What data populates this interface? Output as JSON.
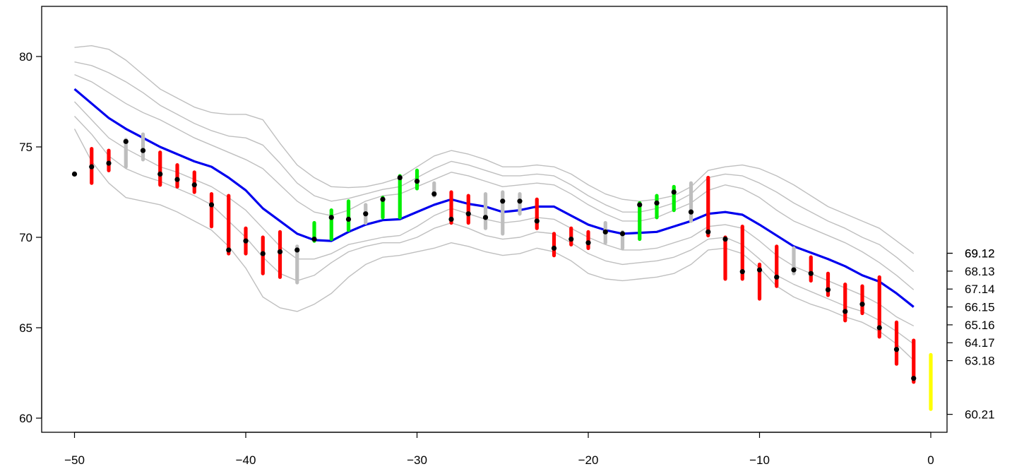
{
  "chart_data": {
    "type": "line",
    "xlim": [
      -50,
      0
    ],
    "ylim": [
      60,
      82
    ],
    "x_ticks": [
      "-50",
      "-40",
      "-30",
      "-20",
      "-10",
      "0"
    ],
    "y_ticks": [
      "60",
      "65",
      "70",
      "75",
      "80"
    ],
    "right_axis_ticks": [
      "60.21",
      "63.18",
      "64.17",
      "65.16",
      "66.15",
      "67.14",
      "68.13",
      "69.12",
      "69.12"
    ],
    "colors": {
      "band": "#bfbfbf",
      "center": "#0000ee",
      "up": "#00ee00",
      "down": "#ff0000",
      "neutral": "#bebebe",
      "current": "#ffff00",
      "point": "#000000"
    },
    "x": [
      -50,
      -49,
      -48,
      -47,
      -46,
      -45,
      -44,
      -43,
      -42,
      -41,
      -40,
      -39,
      -38,
      -37,
      -36,
      -35,
      -34,
      -33,
      -32,
      -31,
      -30,
      -29,
      -28,
      -27,
      -26,
      -25,
      -24,
      -23,
      -22,
      -21,
      -20,
      -19,
      -18,
      -17,
      -16,
      -15,
      -14,
      -13,
      -12,
      -11,
      -10,
      -9,
      -8,
      -7,
      -6,
      -5,
      -4,
      -3,
      -2,
      -1
    ],
    "series": [
      {
        "role": "center",
        "values": [
          78.2,
          77.4,
          76.6,
          76.0,
          75.5,
          75.0,
          74.6,
          74.2,
          73.9,
          73.3,
          72.6,
          71.6,
          70.9,
          70.2,
          69.85,
          69.8,
          70.3,
          70.7,
          70.95,
          71.0,
          71.4,
          71.8,
          72.1,
          71.85,
          71.7,
          71.4,
          71.5,
          71.7,
          71.7,
          71.2,
          70.7,
          70.4,
          70.2,
          70.25,
          70.3,
          70.6,
          70.9,
          71.3,
          71.4,
          71.25,
          70.7,
          70.1,
          69.5,
          69.15,
          68.8,
          68.4,
          67.9,
          67.55,
          66.9,
          66.15
        ]
      },
      {
        "role": "band",
        "values": [
          80.5,
          80.6,
          80.4,
          79.8,
          79.0,
          78.2,
          77.7,
          77.2,
          76.9,
          76.8,
          76.8,
          76.5,
          75.2,
          74.0,
          73.3,
          72.8,
          72.75,
          72.8,
          73.0,
          73.3,
          73.9,
          74.5,
          74.8,
          74.6,
          74.3,
          73.9,
          73.9,
          74.0,
          73.9,
          73.5,
          72.9,
          72.4,
          72.1,
          72.0,
          72.1,
          72.3,
          72.8,
          73.7,
          73.9,
          74.0,
          73.8,
          73.4,
          72.9,
          72.3,
          71.7,
          71.3,
          70.9,
          70.5,
          69.8,
          69.1
        ]
      },
      {
        "role": "band",
        "values": [
          79.7,
          79.5,
          79.1,
          78.6,
          78.0,
          77.3,
          76.8,
          76.3,
          75.9,
          75.6,
          75.5,
          75.1,
          74.1,
          73.0,
          72.3,
          72.0,
          72.15,
          72.4,
          72.65,
          72.8,
          73.3,
          73.8,
          74.2,
          74.0,
          73.7,
          73.4,
          73.4,
          73.5,
          73.4,
          72.9,
          72.3,
          71.8,
          71.4,
          71.4,
          71.6,
          71.9,
          72.4,
          73.3,
          73.5,
          73.4,
          73.0,
          72.5,
          71.9,
          71.4,
          70.9,
          70.5,
          70.0,
          69.6,
          68.9,
          68.1
        ]
      },
      {
        "role": "band",
        "values": [
          79.0,
          78.6,
          78.0,
          77.4,
          76.9,
          76.5,
          76.0,
          75.5,
          75.1,
          74.7,
          74.3,
          73.8,
          72.9,
          72.0,
          71.4,
          71.2,
          71.5,
          72.0,
          72.3,
          72.4,
          72.8,
          73.2,
          73.6,
          73.4,
          73.1,
          72.8,
          72.9,
          73.0,
          72.9,
          72.4,
          71.8,
          71.3,
          70.9,
          70.9,
          71.1,
          71.5,
          71.9,
          72.6,
          72.9,
          72.7,
          72.2,
          71.5,
          70.9,
          70.5,
          70.1,
          69.7,
          69.2,
          68.6,
          67.9,
          67.1
        ]
      },
      {
        "role": "band",
        "values": [
          77.5,
          76.5,
          75.5,
          74.9,
          74.4,
          73.9,
          73.6,
          73.2,
          72.8,
          72.2,
          71.5,
          70.5,
          69.5,
          68.8,
          68.8,
          69.1,
          69.6,
          69.8,
          70.0,
          70.1,
          70.6,
          71.2,
          71.6,
          71.3,
          71.0,
          70.8,
          70.9,
          71.1,
          71.0,
          70.5,
          70.0,
          69.6,
          69.3,
          69.3,
          69.4,
          69.7,
          70.0,
          70.6,
          70.7,
          70.5,
          69.8,
          69.0,
          68.4,
          68.0,
          67.6,
          67.2,
          66.8,
          66.3,
          65.6,
          65.1
        ]
      },
      {
        "role": "band",
        "values": [
          76.7,
          75.7,
          74.5,
          73.8,
          73.4,
          73.1,
          72.7,
          72.3,
          71.8,
          70.9,
          70.0,
          68.9,
          68.0,
          67.6,
          67.9,
          68.6,
          69.2,
          69.5,
          69.7,
          69.7,
          70.0,
          70.5,
          70.8,
          70.5,
          70.1,
          69.9,
          70.0,
          70.3,
          70.2,
          69.7,
          69.1,
          68.7,
          68.5,
          68.6,
          68.7,
          68.9,
          69.3,
          69.9,
          70.0,
          69.6,
          68.8,
          67.9,
          67.4,
          67.0,
          66.6,
          66.2,
          65.9,
          65.4,
          64.8,
          64.1
        ]
      },
      {
        "role": "band",
        "values": [
          76.0,
          74.2,
          73.0,
          72.2,
          72.0,
          71.8,
          71.4,
          70.9,
          70.4,
          69.5,
          68.3,
          66.7,
          66.1,
          65.9,
          66.3,
          66.9,
          67.8,
          68.5,
          68.9,
          69.0,
          69.2,
          69.4,
          69.7,
          69.5,
          69.2,
          69.0,
          69.1,
          69.4,
          69.2,
          68.7,
          68.0,
          67.7,
          67.6,
          67.7,
          67.8,
          68.0,
          68.5,
          69.3,
          69.4,
          69.1,
          68.3,
          67.3,
          66.7,
          66.3,
          66.0,
          65.6,
          65.3,
          64.8,
          64.1,
          63.2
        ]
      }
    ],
    "segments": [
      {
        "x": -49,
        "low": 73.0,
        "high": 74.9,
        "color": "down"
      },
      {
        "x": -48,
        "low": 73.7,
        "high": 74.8,
        "color": "down"
      },
      {
        "x": -47,
        "low": 73.9,
        "high": 75.4,
        "color": "neutral"
      },
      {
        "x": -46,
        "low": 74.3,
        "high": 75.7,
        "color": "neutral"
      },
      {
        "x": -45,
        "low": 72.9,
        "high": 74.7,
        "color": "down"
      },
      {
        "x": -44,
        "low": 72.8,
        "high": 74.0,
        "color": "down"
      },
      {
        "x": -43,
        "low": 72.5,
        "high": 73.6,
        "color": "down"
      },
      {
        "x": -42,
        "low": 70.6,
        "high": 72.4,
        "color": "down"
      },
      {
        "x": -41,
        "low": 69.1,
        "high": 72.3,
        "color": "down"
      },
      {
        "x": -40,
        "low": 69.1,
        "high": 70.5,
        "color": "down"
      },
      {
        "x": -39,
        "low": 68.0,
        "high": 70.0,
        "color": "down"
      },
      {
        "x": -38,
        "low": 67.8,
        "high": 70.3,
        "color": "down"
      },
      {
        "x": -37,
        "low": 67.5,
        "high": 69.5,
        "color": "neutral"
      },
      {
        "x": -36,
        "low": 69.8,
        "high": 70.8,
        "color": "up"
      },
      {
        "x": -35,
        "low": 69.9,
        "high": 71.5,
        "color": "up"
      },
      {
        "x": -34,
        "low": 70.4,
        "high": 72.0,
        "color": "up"
      },
      {
        "x": -33,
        "low": 70.8,
        "high": 71.8,
        "color": "neutral"
      },
      {
        "x": -32,
        "low": 71.1,
        "high": 72.2,
        "color": "up"
      },
      {
        "x": -31,
        "low": 71.1,
        "high": 73.4,
        "color": "up"
      },
      {
        "x": -30,
        "low": 72.7,
        "high": 73.7,
        "color": "up"
      },
      {
        "x": -29,
        "low": 72.3,
        "high": 73.0,
        "color": "neutral"
      },
      {
        "x": -28,
        "low": 70.8,
        "high": 72.5,
        "color": "down"
      },
      {
        "x": -27,
        "low": 70.8,
        "high": 72.3,
        "color": "down"
      },
      {
        "x": -26,
        "low": 70.5,
        "high": 72.4,
        "color": "neutral"
      },
      {
        "x": -25,
        "low": 70.2,
        "high": 72.5,
        "color": "neutral"
      },
      {
        "x": -24,
        "low": 71.3,
        "high": 72.4,
        "color": "neutral"
      },
      {
        "x": -23,
        "low": 70.5,
        "high": 72.1,
        "color": "down"
      },
      {
        "x": -22,
        "low": 69.0,
        "high": 70.2,
        "color": "down"
      },
      {
        "x": -21,
        "low": 69.6,
        "high": 70.5,
        "color": "down"
      },
      {
        "x": -20,
        "low": 69.4,
        "high": 70.3,
        "color": "down"
      },
      {
        "x": -19,
        "low": 69.7,
        "high": 70.8,
        "color": "neutral"
      },
      {
        "x": -18,
        "low": 69.4,
        "high": 70.3,
        "color": "neutral"
      },
      {
        "x": -17,
        "low": 69.9,
        "high": 71.9,
        "color": "up"
      },
      {
        "x": -16,
        "low": 71.1,
        "high": 72.3,
        "color": "up"
      },
      {
        "x": -15,
        "low": 71.5,
        "high": 72.8,
        "color": "up"
      },
      {
        "x": -14,
        "low": 70.9,
        "high": 73.0,
        "color": "neutral"
      },
      {
        "x": -13,
        "low": 70.1,
        "high": 73.3,
        "color": "down"
      },
      {
        "x": -12,
        "low": 67.7,
        "high": 70.0,
        "color": "down"
      },
      {
        "x": -11,
        "low": 67.7,
        "high": 70.6,
        "color": "down"
      },
      {
        "x": -10,
        "low": 66.6,
        "high": 68.5,
        "color": "down"
      },
      {
        "x": -9,
        "low": 67.3,
        "high": 69.5,
        "color": "down"
      },
      {
        "x": -8,
        "low": 68.0,
        "high": 69.4,
        "color": "neutral"
      },
      {
        "x": -7,
        "low": 67.6,
        "high": 68.9,
        "color": "down"
      },
      {
        "x": -6,
        "low": 66.8,
        "high": 68.0,
        "color": "down"
      },
      {
        "x": -5,
        "low": 65.4,
        "high": 67.4,
        "color": "down"
      },
      {
        "x": -4,
        "low": 65.8,
        "high": 67.3,
        "color": "down"
      },
      {
        "x": -3,
        "low": 64.5,
        "high": 67.8,
        "color": "down"
      },
      {
        "x": -2,
        "low": 63.0,
        "high": 65.3,
        "color": "down"
      },
      {
        "x": -1,
        "low": 62.0,
        "high": 64.3,
        "color": "down"
      },
      {
        "x": 0,
        "low": 60.5,
        "high": 63.5,
        "color": "current"
      }
    ],
    "points": [
      {
        "x": -50,
        "y": 73.5
      },
      {
        "x": -49,
        "y": 73.9
      },
      {
        "x": -48,
        "y": 74.1
      },
      {
        "x": -47,
        "y": 75.3
      },
      {
        "x": -46,
        "y": 74.8
      },
      {
        "x": -45,
        "y": 73.5
      },
      {
        "x": -44,
        "y": 73.2
      },
      {
        "x": -43,
        "y": 72.9
      },
      {
        "x": -42,
        "y": 71.8
      },
      {
        "x": -41,
        "y": 69.3
      },
      {
        "x": -40,
        "y": 69.8
      },
      {
        "x": -39,
        "y": 69.1
      },
      {
        "x": -38,
        "y": 69.2
      },
      {
        "x": -37,
        "y": 69.3
      },
      {
        "x": -36,
        "y": 69.9
      },
      {
        "x": -35,
        "y": 71.1
      },
      {
        "x": -34,
        "y": 71.0
      },
      {
        "x": -33,
        "y": 71.3
      },
      {
        "x": -32,
        "y": 72.1
      },
      {
        "x": -31,
        "y": 73.3
      },
      {
        "x": -30,
        "y": 73.1
      },
      {
        "x": -29,
        "y": 72.4
      },
      {
        "x": -28,
        "y": 71.0
      },
      {
        "x": -27,
        "y": 71.3
      },
      {
        "x": -26,
        "y": 71.1
      },
      {
        "x": -25,
        "y": 72.0
      },
      {
        "x": -24,
        "y": 72.0
      },
      {
        "x": -23,
        "y": 70.9
      },
      {
        "x": -22,
        "y": 69.4
      },
      {
        "x": -21,
        "y": 69.9
      },
      {
        "x": -20,
        "y": 69.7
      },
      {
        "x": -19,
        "y": 70.3
      },
      {
        "x": -18,
        "y": 70.2
      },
      {
        "x": -17,
        "y": 71.8
      },
      {
        "x": -16,
        "y": 71.9
      },
      {
        "x": -15,
        "y": 72.5
      },
      {
        "x": -14,
        "y": 71.4
      },
      {
        "x": -13,
        "y": 70.3
      },
      {
        "x": -12,
        "y": 69.9
      },
      {
        "x": -11,
        "y": 68.1
      },
      {
        "x": -10,
        "y": 68.2
      },
      {
        "x": -9,
        "y": 67.8
      },
      {
        "x": -8,
        "y": 68.2
      },
      {
        "x": -7,
        "y": 68.0
      },
      {
        "x": -6,
        "y": 67.1
      },
      {
        "x": -5,
        "y": 65.9
      },
      {
        "x": -4,
        "y": 66.3
      },
      {
        "x": -3,
        "y": 65.0
      },
      {
        "x": -2,
        "y": 63.8
      },
      {
        "x": -1,
        "y": 62.2
      }
    ]
  }
}
